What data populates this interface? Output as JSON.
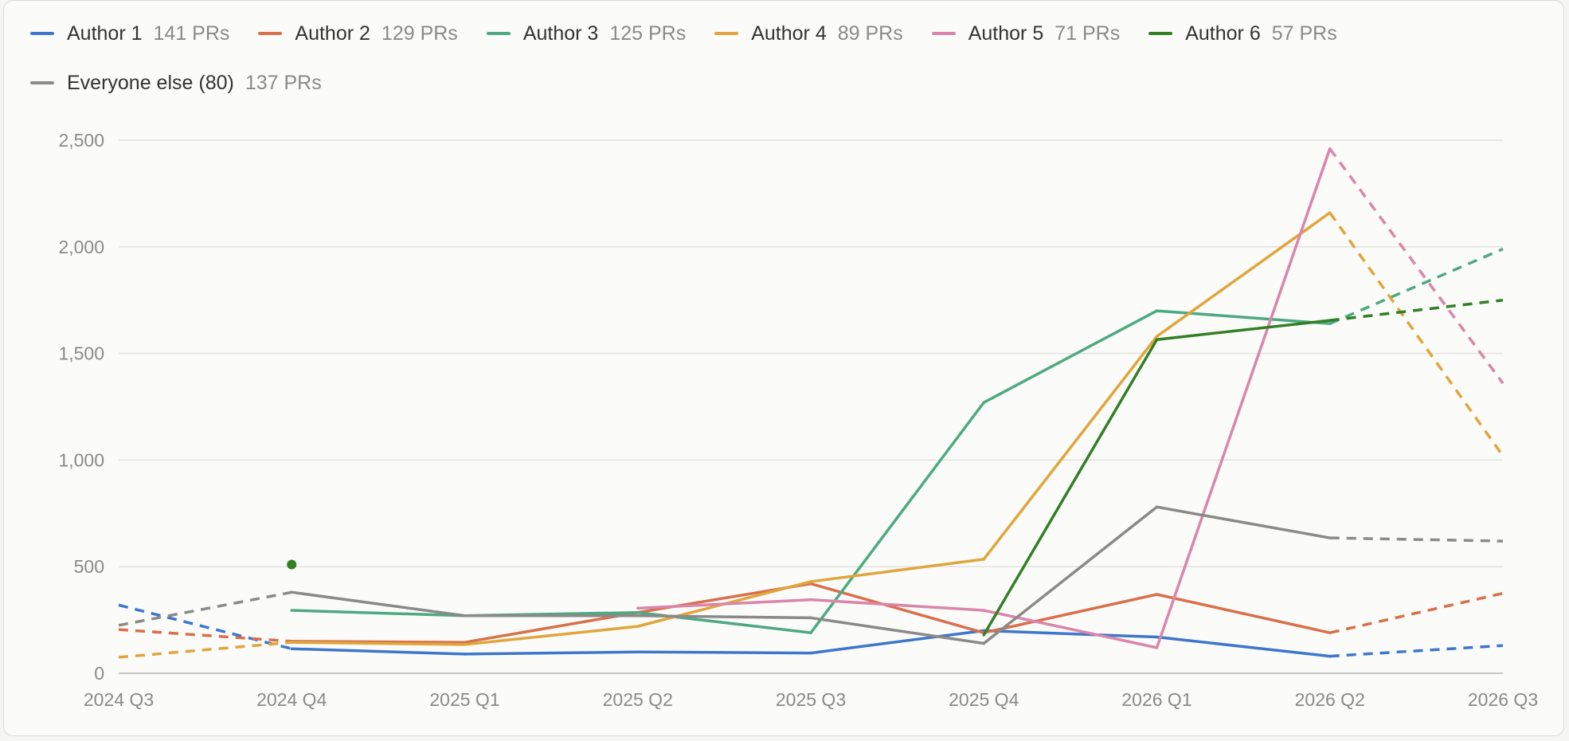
{
  "chart_data": {
    "type": "line",
    "categories": [
      "2024 Q3",
      "2024 Q4",
      "2025 Q1",
      "2025 Q2",
      "2025 Q3",
      "2025 Q4",
      "2026 Q1",
      "2026 Q2",
      "2026 Q3"
    ],
    "ylim": [
      0,
      2500
    ],
    "yticks": [
      "0",
      "500",
      "1,000",
      "1,500",
      "2,000",
      "2,500"
    ],
    "ytick_values": [
      0,
      500,
      1000,
      1500,
      2000,
      2500
    ],
    "grid": "horizontal",
    "legend_position": "top",
    "dashed_segments": "projected segments (first and last intervals)",
    "series": [
      {
        "name": "Author 1",
        "count_label": "141 PRs",
        "color": "#3d77cc",
        "values": [
          320,
          115,
          90,
          100,
          95,
          200,
          170,
          80,
          130
        ],
        "dashed_before": 1,
        "dashed_after": 7
      },
      {
        "name": "Author 2",
        "count_label": "129 PRs",
        "color": "#d9704a",
        "values": [
          205,
          150,
          145,
          285,
          420,
          190,
          370,
          190,
          375
        ],
        "dashed_before": 1,
        "dashed_after": 7
      },
      {
        "name": "Author 3",
        "count_label": "125 PRs",
        "color": "#4daa80",
        "values": [
          null,
          295,
          270,
          285,
          190,
          1270,
          1700,
          1640,
          1990
        ],
        "dashed_before": 0,
        "dashed_after": 7
      },
      {
        "name": "Author 4",
        "count_label": "89 PRs",
        "color": "#e0a63c",
        "values": [
          75,
          145,
          135,
          220,
          430,
          535,
          1580,
          2160,
          1020
        ],
        "dashed_before": 1,
        "dashed_after": 7
      },
      {
        "name": "Author 5",
        "count_label": "71 PRs",
        "color": "#d986aa",
        "values": [
          null,
          null,
          null,
          305,
          345,
          295,
          120,
          2460,
          1360
        ],
        "dashed_before": 0,
        "dashed_after": 7
      },
      {
        "name": "Author 6",
        "count_label": "57 PRs",
        "color": "#327f24",
        "values": [
          null,
          510,
          null,
          null,
          null,
          180,
          1565,
          1655,
          1750
        ],
        "dashed_before": 0,
        "dashed_after": 7
      },
      {
        "name": "Everyone else (80)",
        "count_label": "137 PRs",
        "color": "#8a8a8a",
        "values": [
          225,
          380,
          270,
          270,
          260,
          140,
          780,
          635,
          620
        ],
        "dashed_before": 1,
        "dashed_after": 7
      }
    ]
  }
}
